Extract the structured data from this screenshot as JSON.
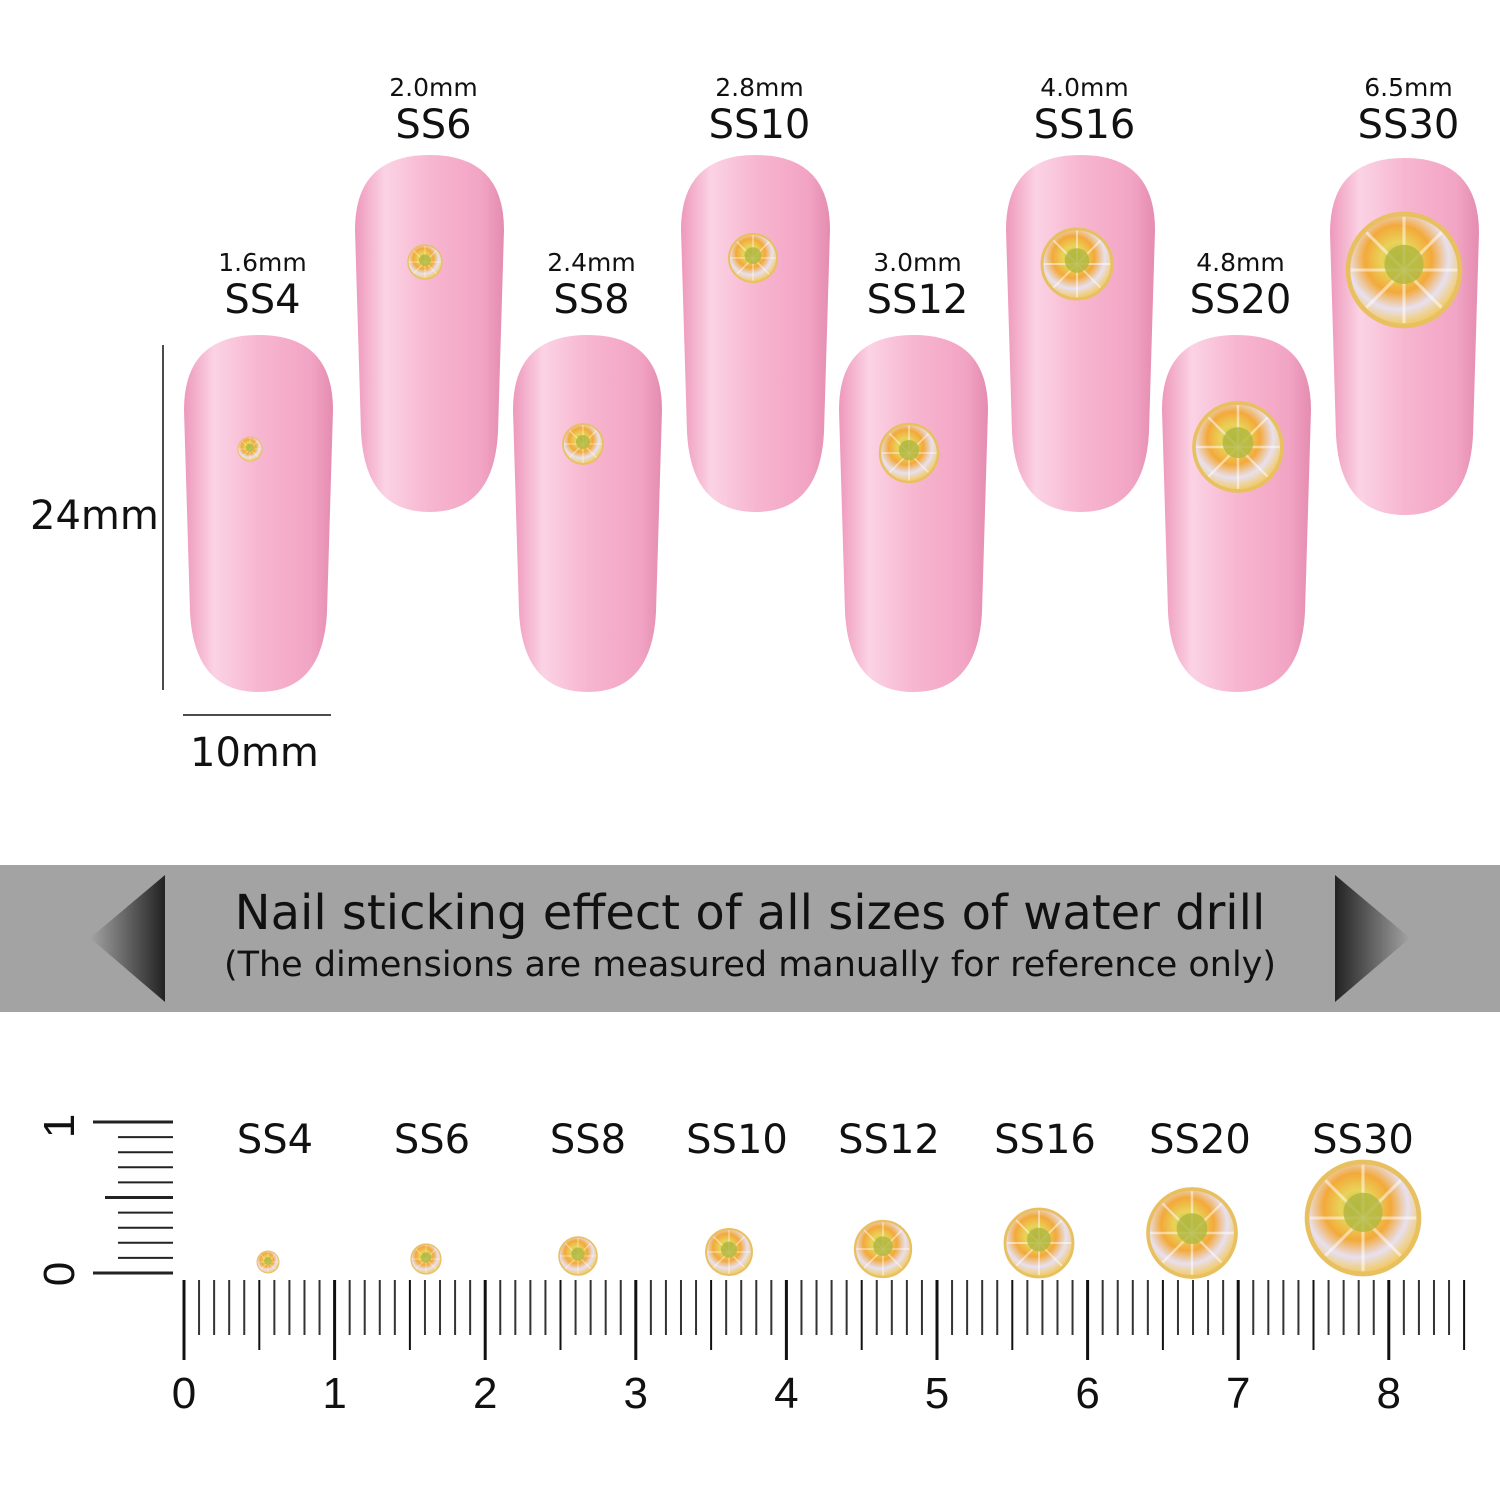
{
  "sizes": [
    {
      "code": "SS4",
      "mm": "1.6mm"
    },
    {
      "code": "SS6",
      "mm": "2.0mm"
    },
    {
      "code": "SS8",
      "mm": "2.4mm"
    },
    {
      "code": "SS10",
      "mm": "2.8mm"
    },
    {
      "code": "SS12",
      "mm": "3.0mm"
    },
    {
      "code": "SS16",
      "mm": "4.0mm"
    },
    {
      "code": "SS20",
      "mm": "4.8mm"
    },
    {
      "code": "SS30",
      "mm": "6.5mm"
    }
  ],
  "nail_height": "24mm",
  "nail_width": "10mm",
  "banner": {
    "title": "Nail sticking effect of all sizes of water drill",
    "subtitle": "(The dimensions are measured manually for reference only)"
  },
  "ruler": {
    "horizontal_labels": [
      "0",
      "1",
      "2",
      "3",
      "4",
      "5",
      "6",
      "7",
      "8"
    ],
    "vertical_labels": [
      "0",
      "1"
    ]
  },
  "colors": {
    "nail": "#f5abc9",
    "banner": "#a3a3a3",
    "gem": "#f0c040"
  }
}
